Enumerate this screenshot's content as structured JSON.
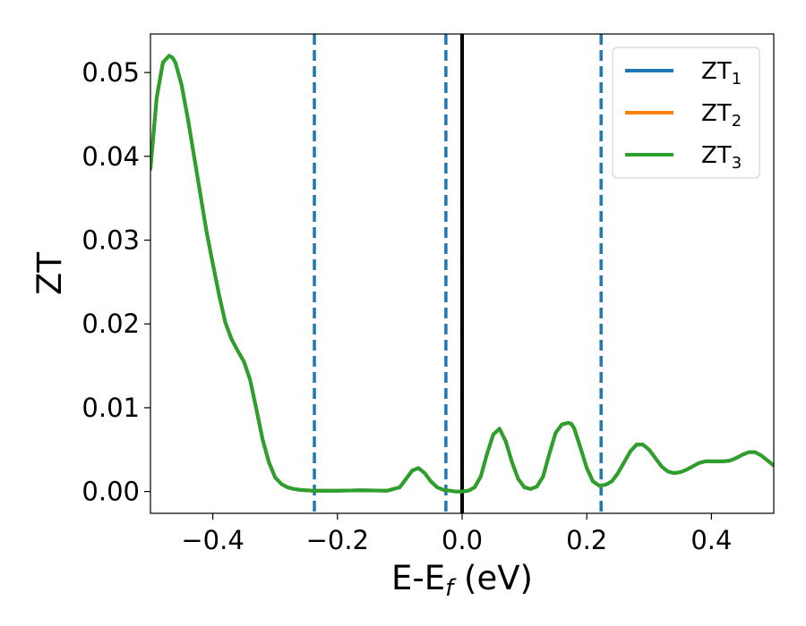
{
  "chart_data": {
    "type": "line",
    "xlabel_main": "E-E",
    "xlabel_sub": "f",
    "xlabel_unit": " (eV)",
    "ylabel": "ZT",
    "xlim": [
      -0.5,
      0.5
    ],
    "ylim": [
      -0.0026,
      0.0546
    ],
    "xticks": [
      {
        "value": -0.4,
        "label": "−0.4"
      },
      {
        "value": -0.2,
        "label": "−0.2"
      },
      {
        "value": 0.0,
        "label": "0.0"
      },
      {
        "value": 0.2,
        "label": "0.2"
      },
      {
        "value": 0.4,
        "label": "0.4"
      }
    ],
    "yticks": [
      {
        "value": 0.0,
        "label": "0.00"
      },
      {
        "value": 0.01,
        "label": "0.01"
      },
      {
        "value": 0.02,
        "label": "0.02"
      },
      {
        "value": 0.03,
        "label": "0.03"
      },
      {
        "value": 0.04,
        "label": "0.04"
      },
      {
        "value": 0.05,
        "label": "0.05"
      }
    ],
    "grid": false,
    "legend_position": "top-right",
    "vertical_lines": [
      {
        "x": -0.237,
        "style": "dashed",
        "color": "#1f77b4"
      },
      {
        "x": -0.026,
        "style": "dashed",
        "color": "#1f77b4"
      },
      {
        "x": 0.0,
        "style": "solid",
        "color": "#000000"
      },
      {
        "x": 0.223,
        "style": "dashed",
        "color": "#1f77b4"
      }
    ],
    "x": [
      -0.5,
      -0.49,
      -0.48,
      -0.47,
      -0.465,
      -0.46,
      -0.45,
      -0.44,
      -0.43,
      -0.42,
      -0.41,
      -0.4,
      -0.39,
      -0.38,
      -0.37,
      -0.36,
      -0.35,
      -0.34,
      -0.33,
      -0.32,
      -0.31,
      -0.3,
      -0.29,
      -0.28,
      -0.27,
      -0.26,
      -0.25,
      -0.24,
      -0.22,
      -0.2,
      -0.18,
      -0.16,
      -0.14,
      -0.12,
      -0.1,
      -0.09,
      -0.08,
      -0.07,
      -0.06,
      -0.05,
      -0.04,
      -0.03,
      -0.02,
      -0.01,
      0.0,
      0.01,
      0.02,
      0.03,
      0.04,
      0.05,
      0.06,
      0.07,
      0.08,
      0.09,
      0.1,
      0.11,
      0.12,
      0.13,
      0.14,
      0.15,
      0.16,
      0.17,
      0.175,
      0.18,
      0.19,
      0.2,
      0.21,
      0.22,
      0.23,
      0.24,
      0.25,
      0.26,
      0.27,
      0.28,
      0.29,
      0.3,
      0.31,
      0.32,
      0.33,
      0.34,
      0.35,
      0.36,
      0.37,
      0.38,
      0.39,
      0.4,
      0.41,
      0.42,
      0.43,
      0.44,
      0.45,
      0.46,
      0.47,
      0.48,
      0.49,
      0.5
    ],
    "series": [
      {
        "name_main": "ZT",
        "name_sub": "1",
        "color": "#1f77b4",
        "values": [
          0.0385,
          0.047,
          0.0512,
          0.052,
          0.0518,
          0.0512,
          0.0485,
          0.0445,
          0.04,
          0.0355,
          0.031,
          0.0272,
          0.0235,
          0.0202,
          0.0182,
          0.0168,
          0.0155,
          0.0133,
          0.0098,
          0.0062,
          0.0035,
          0.0017,
          0.0009,
          0.0005,
          0.0003,
          0.0002,
          0.00015,
          0.0001,
          0.0001,
          0.0001,
          0.00012,
          0.00015,
          0.00012,
          0.0001,
          0.0005,
          0.0015,
          0.0025,
          0.0028,
          0.0022,
          0.0012,
          0.0005,
          0.0002,
          0.0001,
          0.0,
          0.0,
          0.0001,
          0.0005,
          0.0018,
          0.0045,
          0.0068,
          0.0075,
          0.006,
          0.0035,
          0.0015,
          0.0005,
          0.0003,
          0.0006,
          0.0018,
          0.0045,
          0.007,
          0.008,
          0.0082,
          0.0081,
          0.0075,
          0.0052,
          0.0028,
          0.0012,
          0.0007,
          0.0008,
          0.0012,
          0.0022,
          0.0035,
          0.0048,
          0.0056,
          0.0056,
          0.005,
          0.004,
          0.003,
          0.0024,
          0.0022,
          0.0023,
          0.0026,
          0.003,
          0.0034,
          0.0036,
          0.0036,
          0.0036,
          0.0036,
          0.0037,
          0.004,
          0.0044,
          0.0047,
          0.0047,
          0.0043,
          0.0037,
          0.0031
        ]
      },
      {
        "name_main": "ZT",
        "name_sub": "2",
        "color": "#ff7f0e",
        "values": [
          0.0385,
          0.047,
          0.0512,
          0.052,
          0.0518,
          0.0512,
          0.0485,
          0.0445,
          0.04,
          0.0355,
          0.031,
          0.0272,
          0.0235,
          0.0202,
          0.0182,
          0.0168,
          0.0155,
          0.0133,
          0.0098,
          0.0062,
          0.0035,
          0.0017,
          0.0009,
          0.0005,
          0.0003,
          0.0002,
          0.00015,
          0.0001,
          0.0001,
          0.0001,
          0.00012,
          0.00015,
          0.00012,
          0.0001,
          0.0005,
          0.0015,
          0.0025,
          0.0028,
          0.0022,
          0.0012,
          0.0005,
          0.0002,
          0.0001,
          0.0,
          0.0,
          0.0001,
          0.0005,
          0.0018,
          0.0045,
          0.0068,
          0.0075,
          0.006,
          0.0035,
          0.0015,
          0.0005,
          0.0003,
          0.0006,
          0.0018,
          0.0045,
          0.007,
          0.008,
          0.0082,
          0.0081,
          0.0075,
          0.0052,
          0.0028,
          0.0012,
          0.0007,
          0.0008,
          0.0012,
          0.0022,
          0.0035,
          0.0048,
          0.0056,
          0.0056,
          0.005,
          0.004,
          0.003,
          0.0024,
          0.0022,
          0.0023,
          0.0026,
          0.003,
          0.0034,
          0.0036,
          0.0036,
          0.0036,
          0.0036,
          0.0037,
          0.004,
          0.0044,
          0.0047,
          0.0047,
          0.0043,
          0.0037,
          0.0031
        ]
      },
      {
        "name_main": "ZT",
        "name_sub": "3",
        "color": "#2ca02c",
        "values": [
          0.0385,
          0.047,
          0.0512,
          0.052,
          0.0518,
          0.0512,
          0.0485,
          0.0445,
          0.04,
          0.0355,
          0.031,
          0.0272,
          0.0235,
          0.0202,
          0.0182,
          0.0168,
          0.0155,
          0.0133,
          0.0098,
          0.0062,
          0.0035,
          0.0017,
          0.0009,
          0.0005,
          0.0003,
          0.0002,
          0.00015,
          0.0001,
          0.0001,
          0.0001,
          0.00012,
          0.00015,
          0.00012,
          0.0001,
          0.0005,
          0.0015,
          0.0025,
          0.0028,
          0.0022,
          0.0012,
          0.0005,
          0.0002,
          0.0001,
          0.0,
          0.0,
          0.0001,
          0.0005,
          0.0018,
          0.0045,
          0.0068,
          0.0075,
          0.006,
          0.0035,
          0.0015,
          0.0005,
          0.0003,
          0.0006,
          0.0018,
          0.0045,
          0.007,
          0.008,
          0.0082,
          0.0081,
          0.0075,
          0.0052,
          0.0028,
          0.0012,
          0.0007,
          0.0008,
          0.0012,
          0.0022,
          0.0035,
          0.0048,
          0.0056,
          0.0056,
          0.005,
          0.004,
          0.003,
          0.0024,
          0.0022,
          0.0023,
          0.0026,
          0.003,
          0.0034,
          0.0036,
          0.0036,
          0.0036,
          0.0036,
          0.0037,
          0.004,
          0.0044,
          0.0047,
          0.0047,
          0.0043,
          0.0037,
          0.0031
        ]
      }
    ]
  }
}
